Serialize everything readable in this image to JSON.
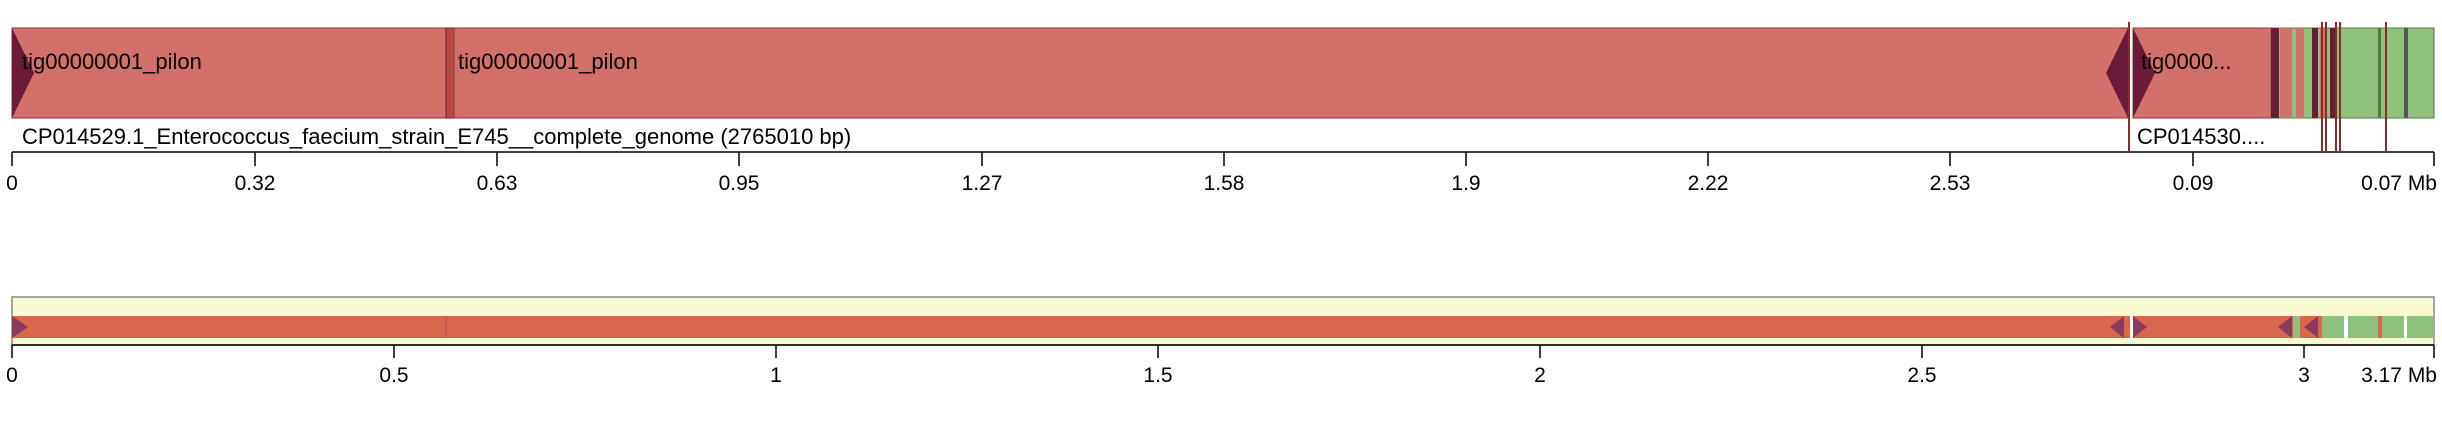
{
  "colors": {
    "contig_red": "#d4706b",
    "contig_red_border": "#8a3a36",
    "contig_green": "#8fc17c",
    "contig_green_border": "#4d7d3d",
    "arrow": "#6b1a3a",
    "divider": "#8b2a2a",
    "overview_bg": "#fafad2",
    "overview_red": "#d9674e",
    "overview_green": "#8fc17c"
  },
  "detail_view": {
    "contig_blocks": [
      {
        "label": "tig00000001_pilon",
        "color": "red",
        "arrow": "right"
      },
      {
        "label": "tig00000001_pilon",
        "color": "red",
        "arrow": "left"
      },
      {
        "label": "tig0000...",
        "color": "red",
        "arrow": "right"
      },
      {
        "label": "",
        "color": "green",
        "arrow": "none"
      }
    ],
    "reference_labels": [
      "CP014529.1_Enterococcus_faecium_strain_E745__complete_genome (2765010 bp)",
      "CP014530...."
    ],
    "axis_ticks": [
      "0",
      "0.32",
      "0.63",
      "0.95",
      "1.27",
      "1.58",
      "1.9",
      "2.22",
      "2.53",
      "0.09",
      "0.07 Mb"
    ]
  },
  "overview": {
    "axis_ticks": [
      "0",
      "0.5",
      "1",
      "1.5",
      "2",
      "2.5",
      "3",
      "3.17 Mb"
    ]
  }
}
